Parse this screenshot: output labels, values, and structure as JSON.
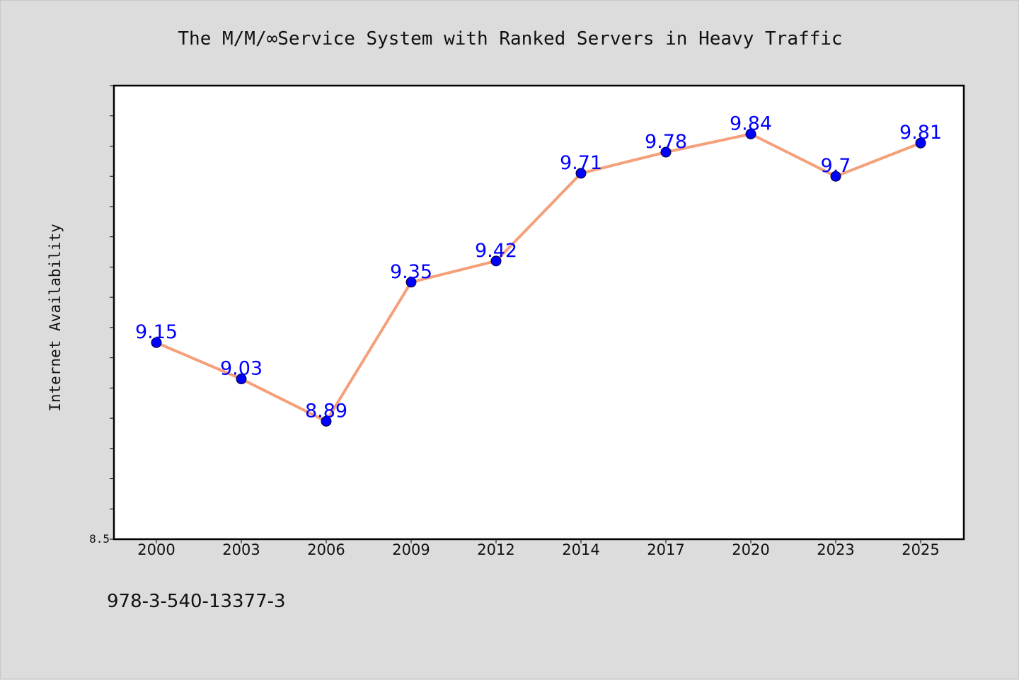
{
  "footnote": "978-3-540-13377-3",
  "chart_data": {
    "type": "line",
    "title": "The M/M/∞Service System with Ranked Servers in Heavy Traffic",
    "xlabel": "",
    "ylabel": "Internet Availability",
    "categories": [
      "2000",
      "2003",
      "2006",
      "2009",
      "2012",
      "2014",
      "2017",
      "2020",
      "2023",
      "2025"
    ],
    "series": [
      {
        "values": [
          9.15,
          9.03,
          8.89,
          9.35,
          9.42,
          9.71,
          9.78,
          9.84,
          9.7,
          9.81
        ]
      }
    ],
    "data_labels": [
      "9.15",
      "9.03",
      "8.89",
      "9.35",
      "9.42",
      "9.71",
      "9.78",
      "9.84",
      "9.7",
      "9.81"
    ],
    "ytick_labels": [
      "8.5"
    ],
    "ylim": [
      8.5,
      10.0
    ],
    "grid": false,
    "colors": {
      "line": "#f4a07a",
      "marker": "#0000ff",
      "label": "#0000ff"
    }
  }
}
